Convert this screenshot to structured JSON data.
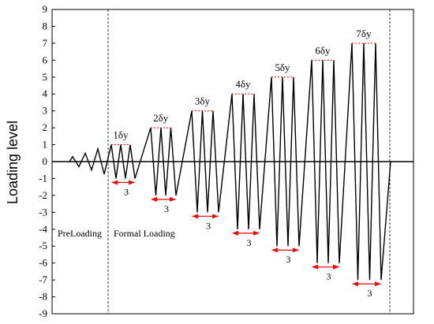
{
  "chart_data": {
    "type": "line",
    "title": "",
    "xlabel": "",
    "ylabel": "Loading level",
    "ylim": [
      -9,
      9
    ],
    "yticks": [
      9,
      8,
      7,
      6,
      5,
      4,
      3,
      2,
      1,
      0,
      -1,
      -2,
      -3,
      -4,
      -5,
      -6,
      -7,
      -8,
      -9
    ],
    "grid": false,
    "series": [
      {
        "values": [
          0,
          0.3,
          -0.3,
          0.5,
          -0.5,
          0.75,
          -0.75,
          1,
          -1,
          1,
          -1,
          1,
          -1,
          2,
          -2,
          2,
          -2,
          2,
          -2,
          3,
          -3,
          3,
          -3,
          3,
          -3,
          4,
          -4,
          4,
          -4,
          4,
          -4,
          5,
          -5,
          5,
          -5,
          5,
          -5,
          6,
          -6,
          6,
          -6,
          6,
          -6,
          7,
          -7,
          7,
          -7,
          7,
          -7,
          0
        ]
      }
    ],
    "phases": [
      {
        "label": "PreLoading"
      },
      {
        "label": "Formal Loading"
      }
    ],
    "stages": [
      {
        "label": "1δy",
        "level": 1,
        "cycles": "3"
      },
      {
        "label": "2δy",
        "level": 2,
        "cycles": "3"
      },
      {
        "label": "3δy",
        "level": 3,
        "cycles": "3"
      },
      {
        "label": "4δy",
        "level": 4,
        "cycles": "3"
      },
      {
        "label": "5δy",
        "level": 5,
        "cycles": "3"
      },
      {
        "label": "6δy",
        "level": 6,
        "cycles": "3"
      },
      {
        "label": "7δy",
        "level": 7,
        "cycles": "3"
      }
    ],
    "colors": {
      "line": "#000000",
      "marker": "#ff0000",
      "divider": "#000000"
    }
  }
}
